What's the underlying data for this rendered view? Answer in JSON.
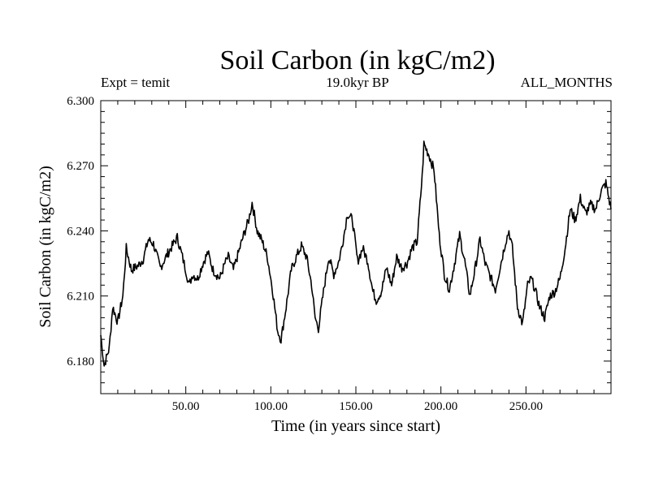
{
  "header": {
    "expt_label": "Expt = temit",
    "period_label": "19.0kyr BP",
    "months_label": "ALL_MONTHS"
  },
  "chart_data": {
    "type": "line",
    "title": "Soil Carbon (in kgC/m2)",
    "xlabel": "Time (in years since start)",
    "ylabel": "Soil Carbon (in kgC/m2)",
    "xlim": [
      0,
      300
    ],
    "ylim": [
      6.165,
      6.3
    ],
    "x_ticks": [
      50,
      100,
      150,
      200,
      250
    ],
    "x_tick_labels": [
      "50.00",
      "100.00",
      "150.00",
      "200.00",
      "250.00"
    ],
    "y_ticks": [
      6.18,
      6.21,
      6.24,
      6.27,
      6.3
    ],
    "y_tick_labels": [
      "6.180",
      "6.210",
      "6.240",
      "6.270",
      "6.300"
    ],
    "grid": false,
    "series": [
      {
        "name": "Soil Carbon",
        "color": "#000000",
        "x": [
          0,
          2,
          5,
          7,
          10,
          13,
          15,
          18,
          22,
          25,
          28,
          31,
          35,
          39,
          42,
          45,
          48,
          50,
          52,
          54,
          57,
          60,
          63,
          66,
          70,
          73,
          75,
          78,
          81,
          84,
          87,
          89,
          92,
          95,
          98,
          101,
          104,
          106,
          109,
          112,
          115,
          118,
          121,
          124,
          126,
          128,
          131,
          134,
          137,
          140,
          143,
          145,
          148,
          151,
          154,
          157,
          160,
          162,
          165,
          168,
          171,
          174,
          177,
          180,
          183,
          186,
          189,
          190,
          193,
          196,
          199,
          202,
          205,
          208,
          211,
          214,
          217,
          220,
          223,
          226,
          229,
          232,
          235,
          238,
          240,
          242,
          245,
          248,
          251,
          253,
          255,
          258,
          261,
          264,
          267,
          270,
          273,
          276,
          279,
          282,
          285,
          288,
          291,
          294,
          297,
          300
        ],
        "values": [
          6.192,
          6.178,
          6.186,
          6.205,
          6.198,
          6.21,
          6.232,
          6.222,
          6.224,
          6.227,
          6.236,
          6.234,
          6.223,
          6.229,
          6.233,
          6.237,
          6.228,
          6.222,
          6.215,
          6.22,
          6.218,
          6.225,
          6.23,
          6.222,
          6.218,
          6.225,
          6.228,
          6.222,
          6.23,
          6.238,
          6.245,
          6.253,
          6.24,
          6.235,
          6.228,
          6.213,
          6.194,
          6.19,
          6.205,
          6.222,
          6.228,
          6.233,
          6.228,
          6.215,
          6.2,
          6.195,
          6.212,
          6.228,
          6.22,
          6.226,
          6.238,
          6.248,
          6.245,
          6.226,
          6.232,
          6.226,
          6.212,
          6.208,
          6.212,
          6.223,
          6.215,
          6.228,
          6.223,
          6.225,
          6.232,
          6.235,
          6.265,
          6.28,
          6.275,
          6.268,
          6.238,
          6.22,
          6.213,
          6.225,
          6.238,
          6.226,
          6.21,
          6.222,
          6.236,
          6.225,
          6.219,
          6.213,
          6.224,
          6.235,
          6.24,
          6.232,
          6.205,
          6.197,
          6.215,
          6.218,
          6.214,
          6.205,
          6.2,
          6.21,
          6.212,
          6.218,
          6.232,
          6.25,
          6.245,
          6.255,
          6.248,
          6.252,
          6.25,
          6.258,
          6.262,
          6.25
        ]
      }
    ]
  }
}
